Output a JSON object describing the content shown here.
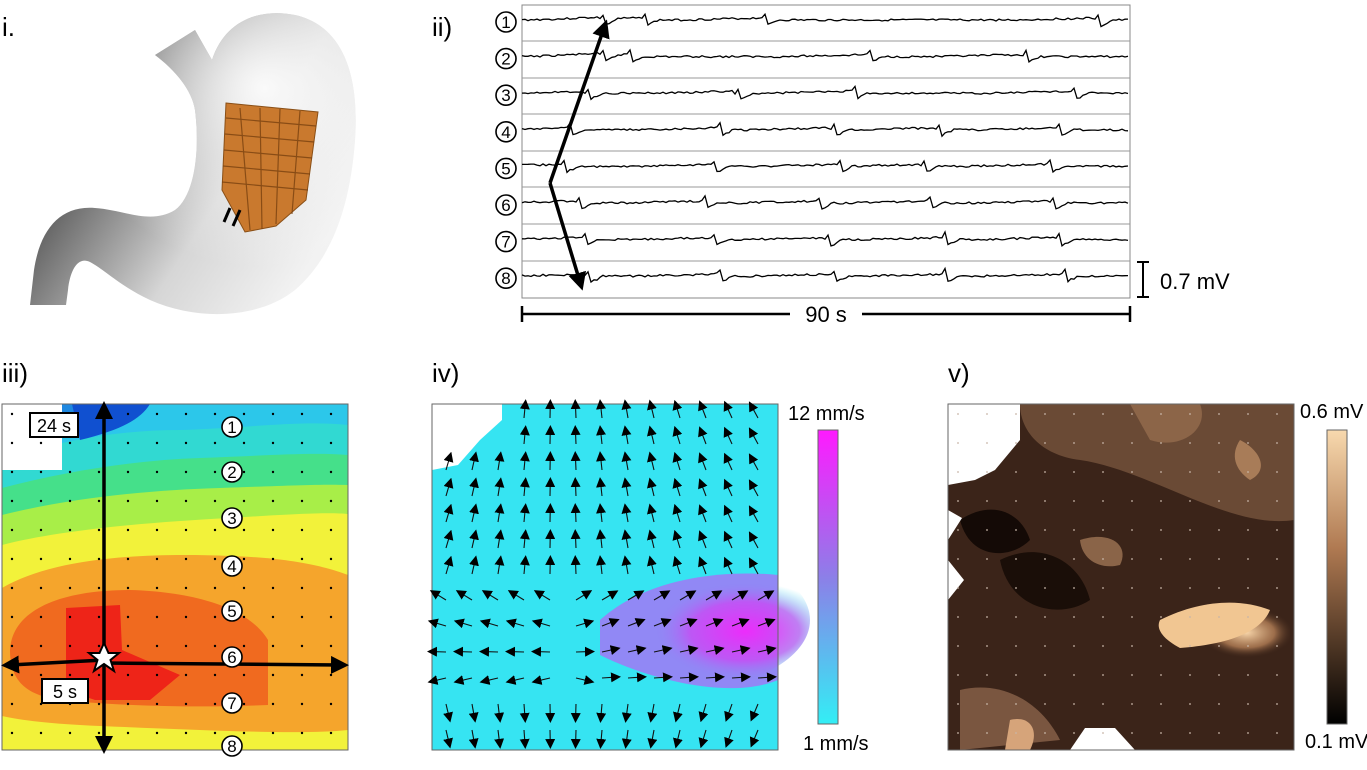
{
  "panels": {
    "i": {
      "label": "i."
    },
    "ii": {
      "label": "ii)",
      "channels": [
        "1",
        "2",
        "3",
        "4",
        "5",
        "6",
        "7",
        "8"
      ],
      "scalebar_label": "0.7 mV",
      "time_label": "90 s"
    },
    "iii": {
      "label": "iii)",
      "contours": [
        "1",
        "2",
        "3",
        "4",
        "5",
        "6",
        "7",
        "8"
      ],
      "top_time": "24 s",
      "bottom_time": "5 s"
    },
    "iv": {
      "label": "iv)",
      "colorbar_max": "12 mm/s",
      "colorbar_min": "1 mm/s"
    },
    "v": {
      "label": "v)",
      "colorbar_max": "0.6 mV",
      "colorbar_min": "0.1 mV"
    }
  },
  "colors": {
    "stomach_light": "#eeeeee",
    "stomach_dark": "#222222",
    "electrode": "#c9792e",
    "cyan": "#33e6f2",
    "magenta": "#ff22ff",
    "brown_dark": "#1e120c",
    "brown_light": "#f6d2a5"
  }
}
